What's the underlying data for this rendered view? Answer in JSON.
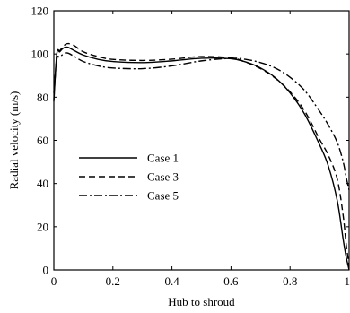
{
  "chart_data": {
    "type": "line",
    "xlabel": "Hub to shroud",
    "ylabel": "Radial velocity (m/s)",
    "xlim": [
      0,
      1
    ],
    "ylim": [
      0,
      120
    ],
    "xticks": [
      0,
      0.2,
      0.4,
      0.6,
      0.8,
      1
    ],
    "xtick_labels": [
      "0",
      "0.2",
      "0.4",
      "0.6",
      "0.8",
      "1"
    ],
    "yticks": [
      0,
      20,
      40,
      60,
      80,
      100,
      120
    ],
    "ytick_labels": [
      "0",
      "20",
      "40",
      "60",
      "80",
      "100",
      "120"
    ],
    "grid": false,
    "legend_position": "left-center",
    "series": [
      {
        "name": "Case 1",
        "style": "solid",
        "x": [
          0,
          0.01,
          0.02,
          0.03,
          0.04,
          0.05,
          0.07,
          0.1,
          0.15,
          0.2,
          0.3,
          0.4,
          0.5,
          0.6,
          0.65,
          0.7,
          0.75,
          0.8,
          0.85,
          0.9,
          0.93,
          0.96,
          0.98,
          0.99,
          1.0
        ],
        "y": [
          78,
          100,
          101,
          102.5,
          103.2,
          103,
          101.5,
          99.5,
          97.5,
          96.5,
          96,
          96.8,
          98,
          97.8,
          96.3,
          93.5,
          89,
          82,
          72,
          58,
          48,
          32,
          14,
          6,
          0
        ]
      },
      {
        "name": "Case 3",
        "style": "dashed",
        "x": [
          0,
          0.01,
          0.02,
          0.03,
          0.04,
          0.05,
          0.07,
          0.1,
          0.15,
          0.2,
          0.3,
          0.4,
          0.5,
          0.6,
          0.65,
          0.7,
          0.75,
          0.8,
          0.85,
          0.9,
          0.93,
          0.96,
          0.98,
          0.99,
          1.0
        ],
        "y": [
          79,
          100,
          101.5,
          103.2,
          104.5,
          104.8,
          103.8,
          101,
          98.8,
          97.5,
          97,
          97.6,
          98.8,
          98.2,
          96.2,
          93.2,
          88.8,
          82.5,
          73.5,
          60.5,
          53,
          42,
          25,
          12,
          2
        ]
      },
      {
        "name": "Case 5",
        "style": "dashdot",
        "x": [
          0,
          0.01,
          0.02,
          0.03,
          0.04,
          0.05,
          0.07,
          0.1,
          0.15,
          0.2,
          0.3,
          0.4,
          0.5,
          0.6,
          0.65,
          0.7,
          0.75,
          0.8,
          0.85,
          0.9,
          0.93,
          0.96,
          0.98,
          0.99,
          1.0
        ],
        "y": [
          82,
          97.5,
          98.5,
          99.8,
          100.5,
          100.3,
          98.8,
          96.5,
          94.5,
          93.5,
          93.2,
          94.5,
          96.8,
          98,
          97.5,
          96,
          93.5,
          89.2,
          83,
          73.5,
          67,
          59,
          50,
          43,
          37
        ]
      }
    ]
  }
}
